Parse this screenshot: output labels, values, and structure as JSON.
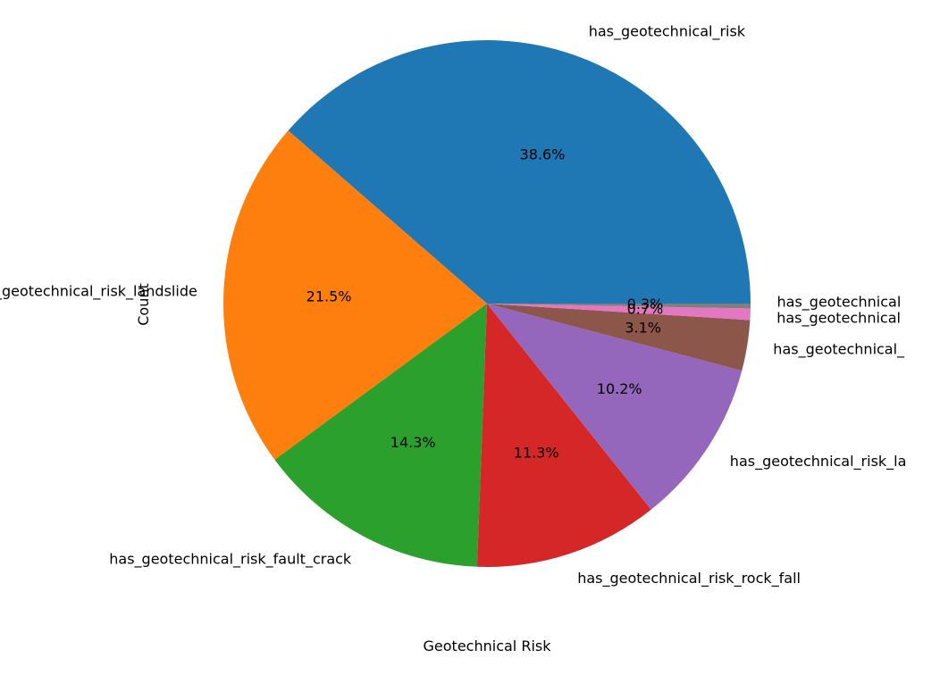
{
  "chart_data": {
    "type": "pie",
    "xlabel": "Geotechnical Risk",
    "ylabel": "Count",
    "categories": [
      "has_geotechnical_risk",
      "has_geotechnical_risk_landslide",
      "has_geotechnical_risk_fault_crack",
      "has_geotechnical_risk_rock_fall",
      "has_geotechnical_risk_la",
      "has_geotechnical_",
      "has_geotechnical",
      "has_geotechnical"
    ],
    "values": [
      38.6,
      21.5,
      14.3,
      11.3,
      10.2,
      3.1,
      0.7,
      0.3
    ],
    "value_labels": [
      "38.6%",
      "21.5%",
      "14.3%",
      "11.3%",
      "10.2%",
      "3.1%",
      "0.7%",
      "0.3%"
    ],
    "colors": [
      "#1f77b4",
      "#ff7f0e",
      "#2ca02c",
      "#d62728",
      "#9467bd",
      "#8c564b",
      "#e377c2",
      "#7f7f7f"
    ],
    "start_angle_deg": 0,
    "direction": "counterclockwise",
    "grid": false,
    "legend": "none"
  }
}
